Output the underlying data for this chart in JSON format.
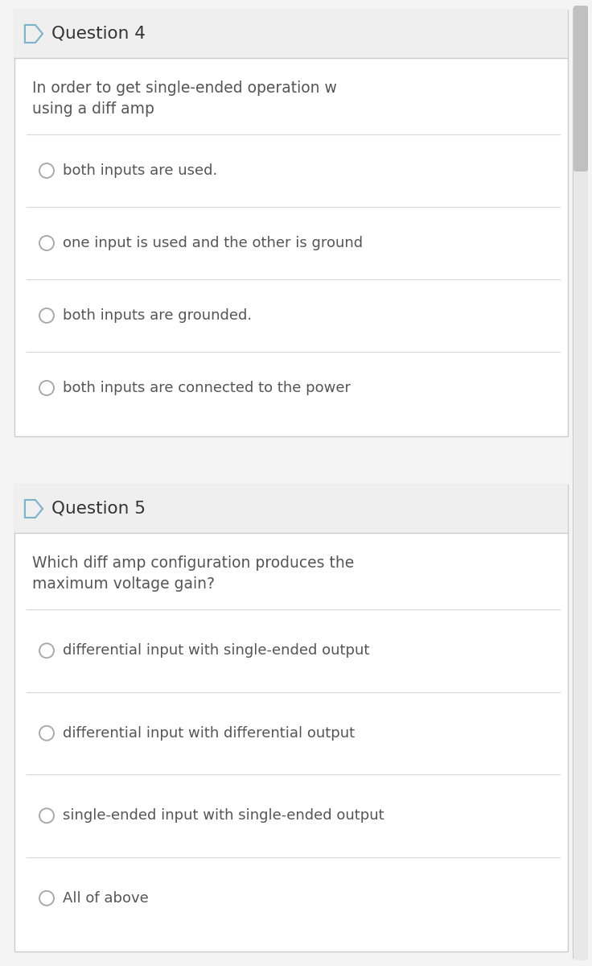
{
  "bg_color": "#f4f4f4",
  "card_bg": "#ffffff",
  "card_border": "#cccccc",
  "header_bg": "#efefef",
  "header_border": "#cccccc",
  "text_color": "#555555",
  "title_color": "#333333",
  "circle_edge": "#aaaaaa",
  "divider_color": "#d8d8d8",
  "scrollbar_track": "#e8e8e8",
  "scrollbar_thumb": "#c0c0c0",
  "icon_color": "#7ab3c8",
  "q4_title": "Question 4",
  "q4_question_line1": "In order to get single-ended operation w",
  "q4_question_line2": "using a diff amp",
  "q4_options": [
    "both inputs are used.",
    "one input is used and the other is ground",
    "both inputs are grounded.",
    "both inputs are connected to the power"
  ],
  "q5_title": "Question 5",
  "q5_question_line1": "Which diff amp configuration produces the",
  "q5_question_line2": "maximum voltage gain?",
  "q5_options": [
    "differential input with single-ended output",
    "differential input with differential output",
    "single-ended input with single-ended output",
    "All of above"
  ],
  "figwidth": 7.36,
  "figheight": 12.0,
  "dpi": 100
}
